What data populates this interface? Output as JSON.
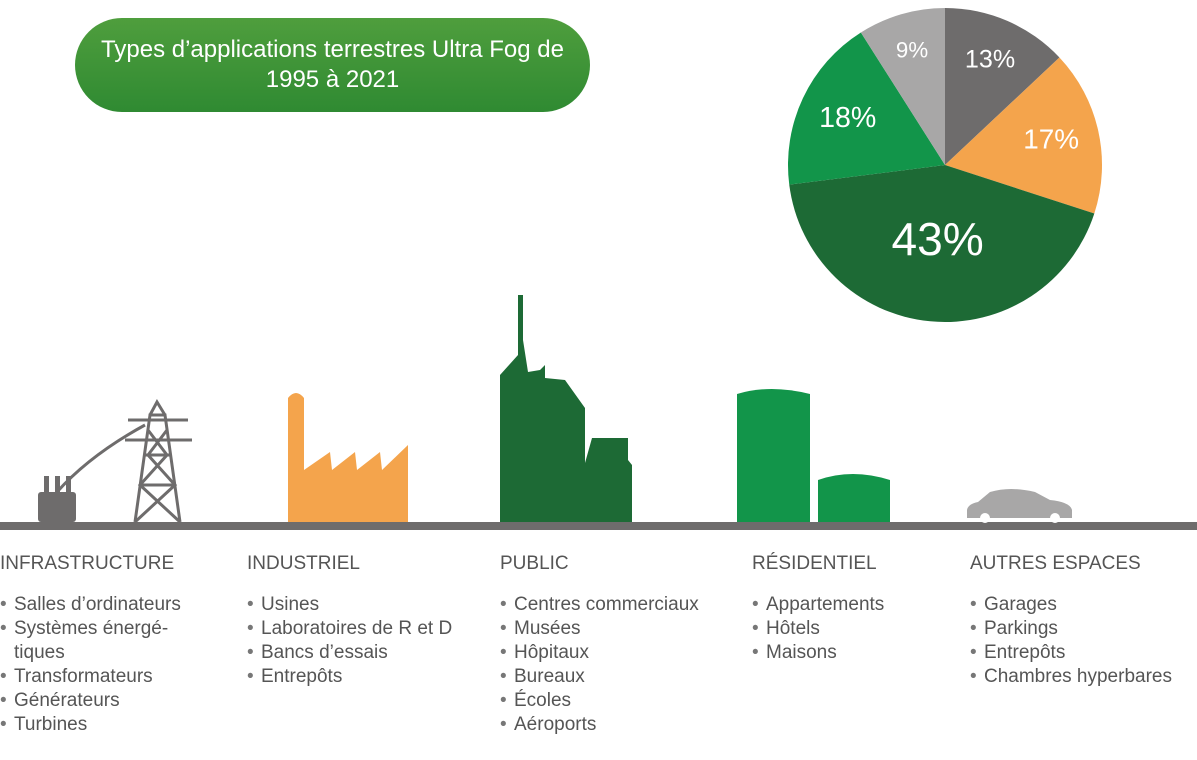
{
  "chart_data": {
    "type": "pie",
    "title": "Types d’applications terrestres Ultra Fog de 1995 à 2021",
    "values": [
      13,
      17,
      43,
      18,
      9
    ],
    "value_labels": [
      "13%",
      "17%",
      "43%",
      "18%",
      "9%"
    ],
    "colors": [
      "#6e6c6c",
      "#f4a44c",
      "#1d6a35",
      "#12954a",
      "#a8a7a7"
    ]
  },
  "sections": [
    {
      "name": "INFRASTRUCTURE",
      "items": [
        "Salles d’ordinateurs",
        "Systèmes énergé­tiques",
        "Transformateurs",
        "Générateurs",
        "Turbines"
      ]
    },
    {
      "name": "INDUSTRIEL",
      "items": [
        "Usines",
        "Laboratoires de R et D",
        "Bancs d’essais",
        "Entrepôts"
      ]
    },
    {
      "name": "PUBLIC",
      "items": [
        "Centres commerciaux",
        "Musées",
        "Hôpitaux",
        "Bureaux",
        "Écoles",
        "Aéroports"
      ]
    },
    {
      "name": "RÉSIDENTIEL",
      "items": [
        "Appartements",
        "Hôtels",
        "Maisons"
      ]
    },
    {
      "name": "AUTRES ESPACES",
      "items": [
        "Garages",
        "Parkings",
        "Entrepôts",
        "Chambres hyperbares"
      ]
    }
  ]
}
